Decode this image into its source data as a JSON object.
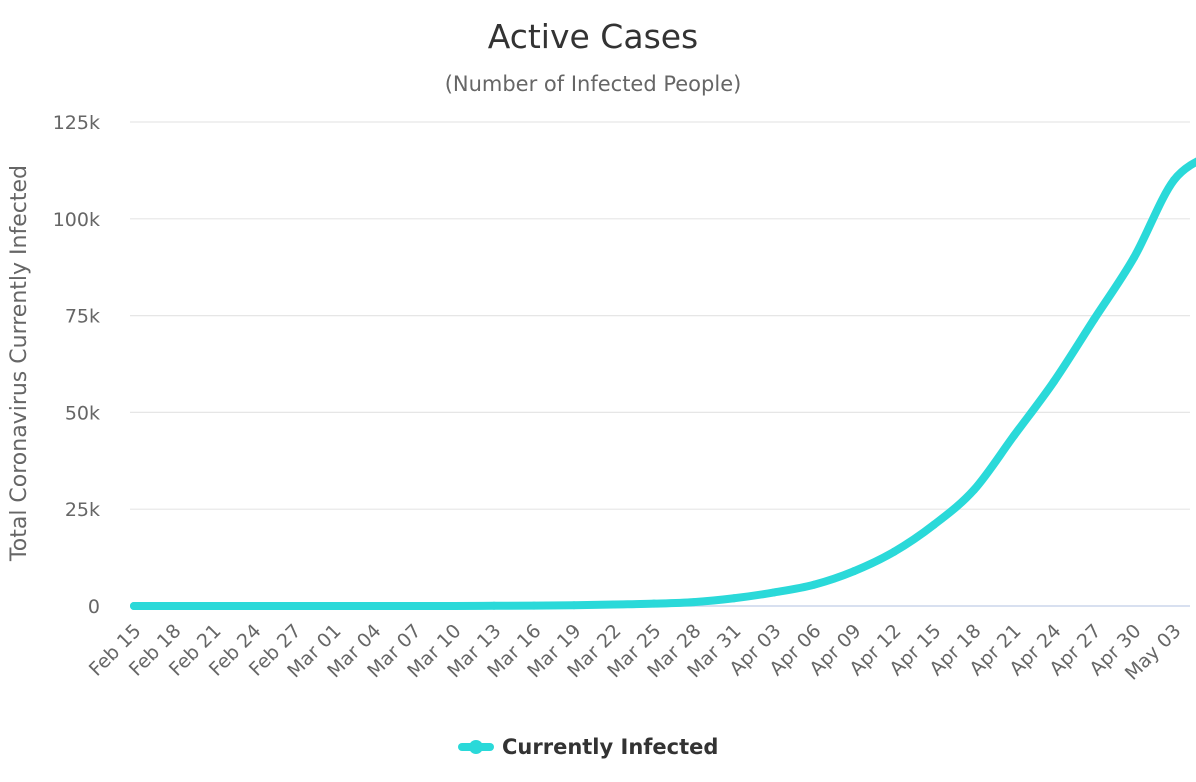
{
  "chart_data": {
    "type": "line",
    "title": "Active Cases",
    "subtitle": "(Number of Infected People)",
    "ylabel": "Total Coronavirus Currently Infected",
    "xlabel": "",
    "ylim": [
      0,
      125000
    ],
    "y_ticks": [
      0,
      25000,
      50000,
      75000,
      100000,
      125000
    ],
    "y_tick_labels": [
      "0",
      "25k",
      "50k",
      "75k",
      "100k",
      "125k"
    ],
    "x_tick_labels": [
      "Feb 15",
      "Feb 18",
      "Feb 21",
      "Feb 24",
      "Feb 27",
      "Mar 01",
      "Mar 04",
      "Mar 07",
      "Mar 10",
      "Mar 13",
      "Mar 16",
      "Mar 19",
      "Mar 22",
      "Mar 25",
      "Mar 28",
      "Mar 31",
      "Apr 03",
      "Apr 06",
      "Apr 09",
      "Apr 12",
      "Apr 15",
      "Apr 18",
      "Apr 21",
      "Apr 24",
      "Apr 27",
      "Apr 30",
      "May 03"
    ],
    "grid": true,
    "legend_position": "bottom-center",
    "series": [
      {
        "name": "Currently Infected",
        "color": "#2ad9d9",
        "x": [
          "Feb 15",
          "Feb 18",
          "Feb 21",
          "Feb 24",
          "Feb 27",
          "Mar 01",
          "Mar 04",
          "Mar 07",
          "Mar 10",
          "Mar 13",
          "Mar 16",
          "Mar 19",
          "Mar 22",
          "Mar 25",
          "Mar 28",
          "Mar 31",
          "Apr 03",
          "Apr 06",
          "Apr 09",
          "Apr 12",
          "Apr 15",
          "Apr 18",
          "Apr 21",
          "Apr 24",
          "Apr 27",
          "Apr 30",
          "May 03",
          "May 04"
        ],
        "values": [
          0,
          0,
          0,
          0,
          0,
          0,
          0,
          0,
          0,
          50,
          100,
          200,
          400,
          600,
          1000,
          2000,
          3500,
          5500,
          9000,
          14000,
          21000,
          30000,
          44000,
          58000,
          74000,
          90000,
          110000,
          117000
        ]
      }
    ]
  }
}
